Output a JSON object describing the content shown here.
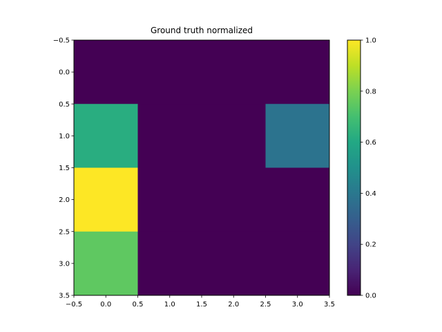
{
  "chart_data": {
    "type": "heatmap",
    "title": "Ground truth normalized",
    "xlabel": "",
    "ylabel": "",
    "rows": 4,
    "cols": 4,
    "values": [
      [
        0.0,
        0.0,
        0.0,
        0.0
      ],
      [
        0.62,
        0.0,
        0.0,
        0.38
      ],
      [
        1.0,
        0.0,
        0.0,
        0.0
      ],
      [
        0.75,
        0.0,
        0.0,
        0.0
      ]
    ],
    "xlim": [
      -0.5,
      3.5
    ],
    "ylim": [
      3.5,
      -0.5
    ],
    "x_ticks": [
      "-0.5",
      "0.0",
      "0.5",
      "1.0",
      "1.5",
      "2.0",
      "2.5",
      "3.0",
      "3.5"
    ],
    "y_ticks": [
      "-0.5",
      "0.0",
      "0.5",
      "1.0",
      "1.5",
      "2.0",
      "2.5",
      "3.0",
      "3.5"
    ],
    "x_tick_values": [
      -0.5,
      0.0,
      0.5,
      1.0,
      1.5,
      2.0,
      2.5,
      3.0,
      3.5
    ],
    "y_tick_values": [
      -0.5,
      0.0,
      0.5,
      1.0,
      1.5,
      2.0,
      2.5,
      3.0,
      3.5
    ],
    "colormap": "viridis",
    "colorbar": {
      "range": [
        0.0,
        1.0
      ],
      "ticks": [
        "0.0",
        "0.2",
        "0.4",
        "0.6",
        "0.8",
        "1.0"
      ],
      "tick_values": [
        0.0,
        0.2,
        0.4,
        0.6,
        0.8,
        1.0
      ]
    }
  }
}
